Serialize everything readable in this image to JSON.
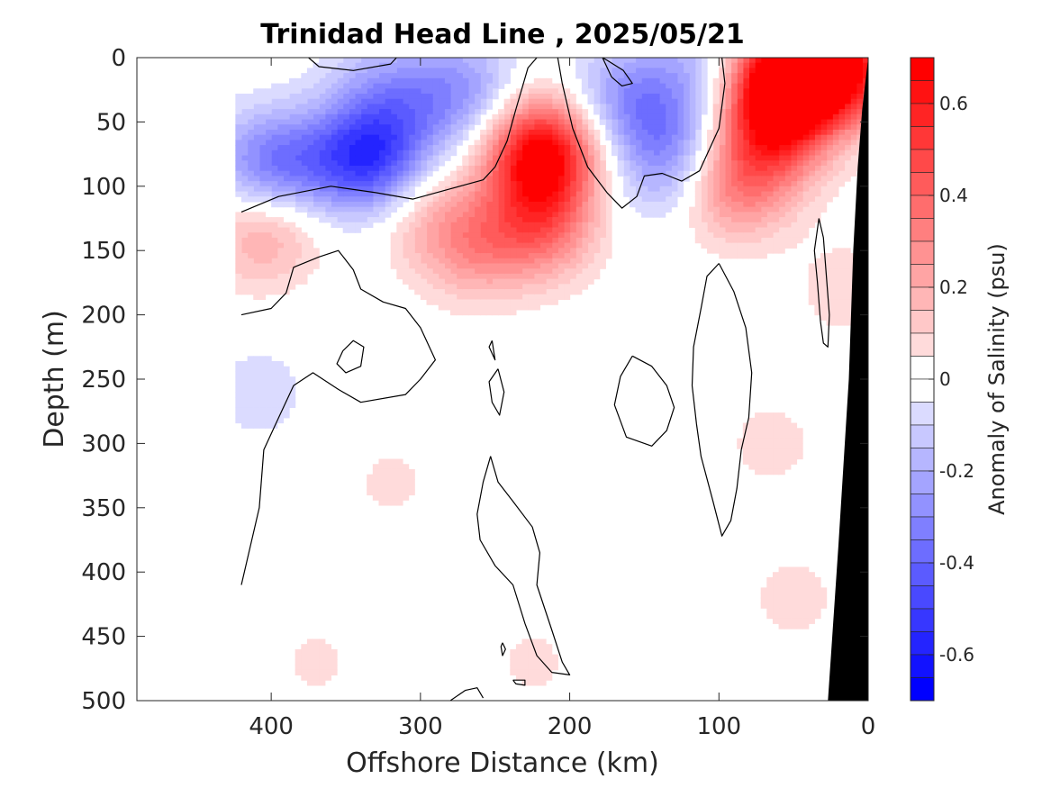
{
  "chart_data": {
    "type": "heatmap",
    "title": "Trinidad Head Line , 2025/05/21",
    "xlabel": "Offshore Distance (km)",
    "ylabel": "Depth (m)",
    "colorbar_label": "Anomaly of Salinity (psu)",
    "xlim": [
      490,
      0
    ],
    "ylim": [
      500,
      0
    ],
    "x_ticks": [
      400,
      300,
      200,
      100,
      0
    ],
    "x_tick_labels": [
      "400",
      "300",
      "200",
      "100",
      "0"
    ],
    "y_ticks": [
      0,
      50,
      100,
      150,
      200,
      250,
      300,
      350,
      400,
      450,
      500
    ],
    "y_tick_labels": [
      "0",
      "50",
      "100",
      "150",
      "200",
      "250",
      "300",
      "350",
      "400",
      "450",
      "500"
    ],
    "clim": [
      -0.7,
      0.7
    ],
    "colorbar_ticks": [
      0.6,
      0.4,
      0.2,
      0,
      -0.2,
      -0.4,
      -0.6
    ],
    "colorbar_tick_labels": [
      "0.6",
      "0.4",
      "0.2",
      "0",
      "-0.2",
      "-0.4",
      "-0.6"
    ],
    "contour_step": 0.05,
    "colormap": {
      "negative": "#0000ff",
      "zero": "#ffffff",
      "positive": "#ff0000"
    },
    "bathymetry_color": "#000000",
    "bathymetry": [
      [
        27,
        500
      ],
      [
        20,
        380
      ],
      [
        13,
        250
      ],
      [
        10,
        150
      ],
      [
        7,
        85
      ],
      [
        4,
        40
      ],
      [
        0,
        0
      ]
    ],
    "features": [
      {
        "x": 335,
        "depth": 78,
        "value": -0.5
      },
      {
        "x": 410,
        "depth": 85,
        "value": -0.2
      },
      {
        "x": 385,
        "depth": 85,
        "value": -0.25
      },
      {
        "x": 305,
        "depth": 40,
        "value": -0.15
      },
      {
        "x": 270,
        "depth": 25,
        "value": -0.22
      },
      {
        "x": 330,
        "depth": 20,
        "value": -0.12
      },
      {
        "x": 150,
        "depth": 40,
        "value": -0.2
      },
      {
        "x": 170,
        "depth": 25,
        "value": -0.12
      },
      {
        "x": 125,
        "depth": 70,
        "value": -0.15
      },
      {
        "x": 140,
        "depth": 90,
        "value": -0.12
      },
      {
        "x": 110,
        "depth": 5,
        "value": -0.15
      },
      {
        "x": 408,
        "depth": 260,
        "value": -0.08
      },
      {
        "x": 219,
        "depth": 75,
        "value": 0.7
      },
      {
        "x": 220,
        "depth": 130,
        "value": 0.35
      },
      {
        "x": 265,
        "depth": 145,
        "value": 0.25
      },
      {
        "x": 300,
        "depth": 120,
        "value": 0.12
      },
      {
        "x": 395,
        "depth": 120,
        "value": 0.12
      },
      {
        "x": 410,
        "depth": 140,
        "value": 0.15
      },
      {
        "x": 60,
        "depth": 20,
        "value": 0.55
      },
      {
        "x": 65,
        "depth": 60,
        "value": 0.4
      },
      {
        "x": 90,
        "depth": 100,
        "value": 0.3
      },
      {
        "x": 40,
        "depth": 8,
        "value": 0.5
      },
      {
        "x": 15,
        "depth": 8,
        "value": 0.45
      },
      {
        "x": 15,
        "depth": 180,
        "value": 0.08
      },
      {
        "x": 65,
        "depth": 300,
        "value": 0.07
      },
      {
        "x": 50,
        "depth": 420,
        "value": 0.07
      },
      {
        "x": 320,
        "depth": 330,
        "value": 0.06
      },
      {
        "x": 225,
        "depth": 470,
        "value": 0.06
      },
      {
        "x": 370,
        "depth": 470,
        "value": 0.06
      }
    ],
    "zero_contours": [
      [
        [
          420,
          120
        ],
        [
          395,
          108
        ],
        [
          360,
          100
        ],
        [
          330,
          105
        ],
        [
          305,
          110
        ],
        [
          280,
          102
        ],
        [
          258,
          95
        ],
        [
          250,
          85
        ],
        [
          242,
          65
        ],
        [
          236,
          40
        ],
        [
          228,
          8
        ],
        [
          222,
          0
        ]
      ],
      [
        [
          208,
          0
        ],
        [
          205,
          20
        ],
        [
          198,
          55
        ],
        [
          188,
          85
        ],
        [
          175,
          105
        ],
        [
          165,
          117
        ],
        [
          155,
          108
        ],
        [
          150,
          92
        ],
        [
          138,
          90
        ],
        [
          125,
          96
        ],
        [
          113,
          88
        ],
        [
          100,
          55
        ],
        [
          96,
          20
        ],
        [
          98,
          0
        ]
      ],
      [
        [
          375,
          0
        ],
        [
          368,
          7
        ],
        [
          345,
          10
        ],
        [
          320,
          5
        ],
        [
          316,
          0
        ]
      ],
      [
        [
          178,
          0
        ],
        [
          172,
          15
        ],
        [
          165,
          22
        ],
        [
          158,
          20
        ],
        [
          164,
          10
        ],
        [
          175,
          2
        ],
        [
          178,
          0
        ]
      ],
      [
        [
          420,
          200
        ],
        [
          400,
          195
        ],
        [
          390,
          183
        ],
        [
          385,
          163
        ],
        [
          368,
          155
        ],
        [
          355,
          150
        ],
        [
          345,
          165
        ],
        [
          340,
          180
        ],
        [
          325,
          190
        ],
        [
          310,
          195
        ],
        [
          300,
          210
        ],
        [
          290,
          235
        ],
        [
          300,
          250
        ],
        [
          310,
          262
        ],
        [
          340,
          268
        ],
        [
          355,
          258
        ],
        [
          372,
          245
        ],
        [
          385,
          255
        ],
        [
          395,
          280
        ],
        [
          405,
          305
        ],
        [
          408,
          350
        ],
        [
          415,
          385
        ],
        [
          420,
          410
        ]
      ],
      [
        [
          352,
          228
        ],
        [
          345,
          220
        ],
        [
          338,
          225
        ],
        [
          340,
          240
        ],
        [
          350,
          245
        ],
        [
          356,
          238
        ],
        [
          352,
          228
        ]
      ],
      [
        [
          158,
          232
        ],
        [
          145,
          240
        ],
        [
          135,
          255
        ],
        [
          130,
          272
        ],
        [
          135,
          290
        ],
        [
          145,
          302
        ],
        [
          162,
          295
        ],
        [
          170,
          270
        ],
        [
          166,
          248
        ],
        [
          158,
          232
        ]
      ],
      [
        [
          100,
          160
        ],
        [
          90,
          182
        ],
        [
          82,
          210
        ],
        [
          78,
          245
        ],
        [
          80,
          280
        ],
        [
          85,
          305
        ],
        [
          88,
          335
        ],
        [
          92,
          360
        ],
        [
          98,
          372
        ],
        [
          104,
          345
        ],
        [
          112,
          310
        ],
        [
          115,
          285
        ],
        [
          118,
          255
        ],
        [
          117,
          225
        ],
        [
          112,
          195
        ],
        [
          108,
          170
        ],
        [
          100,
          160
        ]
      ],
      [
        [
          33,
          125
        ],
        [
          36,
          150
        ],
        [
          34,
          175
        ],
        [
          32,
          205
        ],
        [
          30,
          222
        ],
        [
          27,
          225
        ],
        [
          26,
          200
        ],
        [
          28,
          170
        ],
        [
          30,
          140
        ],
        [
          33,
          125
        ]
      ],
      [
        [
          248,
          242
        ],
        [
          244,
          260
        ],
        [
          247,
          278
        ],
        [
          252,
          268
        ],
        [
          254,
          252
        ],
        [
          248,
          242
        ]
      ],
      [
        [
          252,
          220
        ],
        [
          250,
          235
        ],
        [
          254,
          225
        ],
        [
          252,
          220
        ]
      ],
      [
        [
          253,
          310
        ],
        [
          248,
          330
        ],
        [
          238,
          345
        ],
        [
          225,
          365
        ],
        [
          220,
          385
        ],
        [
          222,
          410
        ],
        [
          212,
          445
        ],
        [
          205,
          470
        ],
        [
          200,
          480
        ],
        [
          212,
          478
        ],
        [
          222,
          465
        ],
        [
          230,
          440
        ],
        [
          238,
          410
        ],
        [
          250,
          395
        ],
        [
          260,
          375
        ],
        [
          262,
          355
        ],
        [
          258,
          330
        ],
        [
          253,
          310
        ]
      ],
      [
        [
          238,
          484
        ],
        [
          230,
          484
        ],
        [
          230,
          488
        ],
        [
          236,
          487
        ],
        [
          238,
          484
        ]
      ],
      [
        [
          245,
          455
        ],
        [
          243,
          460
        ],
        [
          245,
          465
        ],
        [
          246,
          458
        ],
        [
          245,
          455
        ]
      ],
      [
        [
          258,
          498
        ],
        [
          262,
          490
        ],
        [
          270,
          492
        ],
        [
          280,
          500
        ]
      ]
    ]
  }
}
